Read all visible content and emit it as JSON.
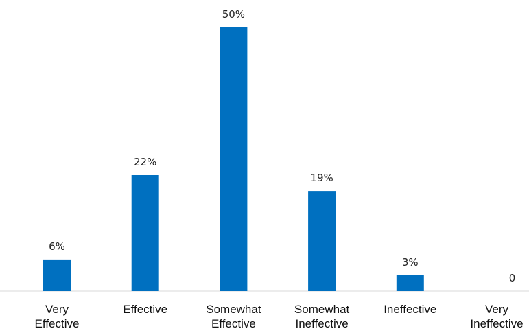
{
  "chart_data": {
    "type": "bar",
    "title": "",
    "xlabel": "",
    "ylabel": "",
    "categories": [
      [
        "Very",
        "Effective"
      ],
      [
        "Effective"
      ],
      [
        "Somewhat",
        "Effective"
      ],
      [
        "Somewhat",
        "Ineffective"
      ],
      [
        "Ineffective"
      ],
      [
        "Very",
        "Ineffective"
      ]
    ],
    "values": [
      6,
      22,
      50,
      19,
      3,
      0
    ],
    "data_labels": [
      "6%",
      "22%",
      "50%",
      "19%",
      "3%",
      "0"
    ],
    "ylim": [
      0,
      50
    ],
    "grid": false,
    "legend": "none",
    "colors": {
      "bar": "#0070C0",
      "axis": "#d9d9d9"
    }
  }
}
